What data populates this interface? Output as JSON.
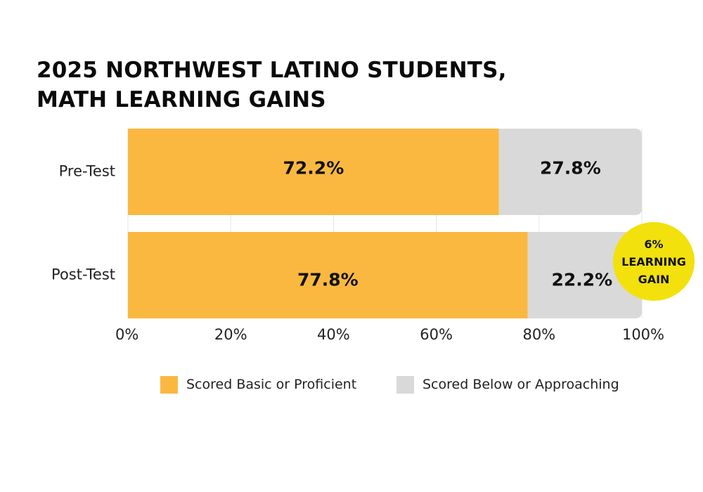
{
  "chart_data": {
    "type": "bar",
    "orientation": "horizontal",
    "stacked": true,
    "title_lines": [
      "2025 NORTHWEST LATINO STUDENTS,",
      "MATH LEARNING GAINS"
    ],
    "categories": [
      "Pre-Test",
      "Post-Test"
    ],
    "series": [
      {
        "name": "Scored Basic or Proficient",
        "values": [
          72.2,
          77.8
        ],
        "labels": [
          "72.2%",
          "77.8%"
        ],
        "color": "#fbb840"
      },
      {
        "name": "Scored Below or Approaching",
        "values": [
          27.8,
          22.2
        ],
        "labels": [
          "27.8%",
          "22.2%"
        ],
        "color": "#d9d9d9"
      }
    ],
    "xlim": [
      0,
      100
    ],
    "x_ticks": [
      0,
      20,
      40,
      60,
      80,
      100
    ],
    "x_tick_labels": [
      "0%",
      "20%",
      "40%",
      "60%",
      "80%",
      "100%"
    ],
    "grid": "vertical",
    "legend_position": "bottom",
    "annotation": {
      "lines": [
        "6%",
        "LEARNING",
        "GAIN"
      ],
      "color": "#f2e10c",
      "attached_to": "Post-Test"
    }
  }
}
